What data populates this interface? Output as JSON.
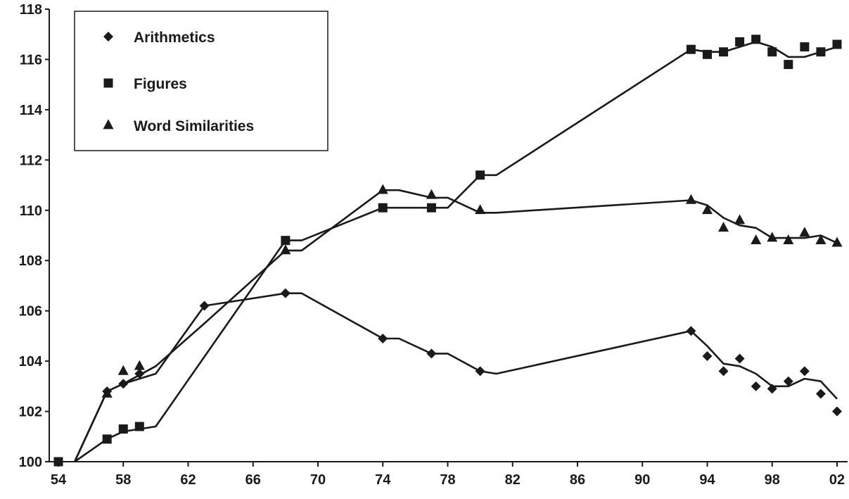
{
  "chart_data": {
    "type": "line",
    "title": "",
    "xlabel": "",
    "ylabel": "",
    "xlim": [
      1954,
      2002
    ],
    "ylim": [
      100,
      118
    ],
    "x_ticks": [
      1954,
      1958,
      1962,
      1966,
      1970,
      1974,
      1978,
      1982,
      1986,
      1990,
      1994,
      1998,
      2002
    ],
    "x_tick_labels": [
      "54",
      "58",
      "62",
      "66",
      "70",
      "74",
      "78",
      "82",
      "86",
      "90",
      "94",
      "98",
      "02"
    ],
    "y_ticks": [
      100,
      102,
      104,
      106,
      108,
      110,
      112,
      114,
      116,
      118
    ],
    "y_tick_labels": [
      "100",
      "102",
      "104",
      "106",
      "108",
      "110",
      "112",
      "114",
      "116",
      "118"
    ],
    "grid": false,
    "legend_placement": "top-left",
    "series": [
      {
        "name": "Arithmetics",
        "marker": "diamond",
        "points": [
          [
            1954,
            100.0
          ],
          [
            1957,
            102.8
          ],
          [
            1958,
            103.1
          ],
          [
            1959,
            103.5
          ],
          [
            1963,
            106.2
          ],
          [
            1968,
            106.7
          ],
          [
            1974,
            104.9
          ],
          [
            1977,
            104.3
          ],
          [
            1980,
            103.6
          ],
          [
            1993,
            105.2
          ],
          [
            1994,
            104.2
          ],
          [
            1995,
            103.6
          ],
          [
            1996,
            104.1
          ],
          [
            1997,
            103.0
          ],
          [
            1998,
            102.9
          ],
          [
            1999,
            103.2
          ],
          [
            2000,
            103.6
          ],
          [
            2001,
            102.7
          ],
          [
            2002,
            102.0
          ]
        ],
        "trend": [
          [
            1955,
            100.0
          ],
          [
            1957,
            102.8
          ],
          [
            1958,
            103.1
          ],
          [
            1960,
            103.5
          ],
          [
            1963,
            106.2
          ],
          [
            1968,
            106.7
          ],
          [
            1969,
            106.7
          ],
          [
            1974,
            104.9
          ],
          [
            1975,
            104.9
          ],
          [
            1977,
            104.3
          ],
          [
            1978,
            104.3
          ],
          [
            1980,
            103.6
          ],
          [
            1981,
            103.5
          ],
          [
            1993,
            105.2
          ],
          [
            1994,
            104.6
          ],
          [
            1995,
            103.9
          ],
          [
            1996,
            103.8
          ],
          [
            1997,
            103.5
          ],
          [
            1998,
            103.0
          ],
          [
            1999,
            103.0
          ],
          [
            2000,
            103.3
          ],
          [
            2001,
            103.2
          ],
          [
            2002,
            102.5
          ]
        ]
      },
      {
        "name": "Figures",
        "marker": "square",
        "points": [
          [
            1954,
            100.0
          ],
          [
            1957,
            100.9
          ],
          [
            1958,
            101.3
          ],
          [
            1959,
            101.4
          ],
          [
            1968,
            108.8
          ],
          [
            1974,
            110.1
          ],
          [
            1977,
            110.1
          ],
          [
            1980,
            111.4
          ],
          [
            1993,
            116.4
          ],
          [
            1994,
            116.2
          ],
          [
            1995,
            116.3
          ],
          [
            1996,
            116.7
          ],
          [
            1997,
            116.8
          ],
          [
            1998,
            116.3
          ],
          [
            1999,
            115.8
          ],
          [
            2000,
            116.5
          ],
          [
            2001,
            116.3
          ],
          [
            2002,
            116.6
          ]
        ],
        "trend": [
          [
            1955,
            100.0
          ],
          [
            1957,
            100.9
          ],
          [
            1958,
            101.2
          ],
          [
            1960,
            101.4
          ],
          [
            1968,
            108.8
          ],
          [
            1969,
            108.8
          ],
          [
            1974,
            110.1
          ],
          [
            1978,
            110.1
          ],
          [
            1980,
            111.4
          ],
          [
            1981,
            111.4
          ],
          [
            1993,
            116.4
          ],
          [
            1994,
            116.3
          ],
          [
            1995,
            116.3
          ],
          [
            1996,
            116.5
          ],
          [
            1997,
            116.7
          ],
          [
            1998,
            116.5
          ],
          [
            1999,
            116.1
          ],
          [
            2000,
            116.1
          ],
          [
            2001,
            116.3
          ],
          [
            2002,
            116.5
          ]
        ]
      },
      {
        "name": "Word Similarities",
        "marker": "triangle",
        "points": [
          [
            1957,
            102.7
          ],
          [
            1958,
            103.6
          ],
          [
            1959,
            103.8
          ],
          [
            1968,
            108.4
          ],
          [
            1974,
            110.8
          ],
          [
            1977,
            110.6
          ],
          [
            1980,
            110.0
          ],
          [
            1993,
            110.4
          ],
          [
            1994,
            110.0
          ],
          [
            1995,
            109.3
          ],
          [
            1996,
            109.6
          ],
          [
            1997,
            108.8
          ],
          [
            1998,
            108.9
          ],
          [
            1999,
            108.8
          ],
          [
            2000,
            109.1
          ],
          [
            2001,
            108.8
          ],
          [
            2002,
            108.7
          ]
        ],
        "trend": [
          [
            1955,
            100.0
          ],
          [
            1957,
            102.8
          ],
          [
            1958,
            103.1
          ],
          [
            1960,
            103.8
          ],
          [
            1963,
            105.5
          ],
          [
            1968,
            108.4
          ],
          [
            1969,
            108.4
          ],
          [
            1974,
            110.8
          ],
          [
            1975,
            110.8
          ],
          [
            1977,
            110.5
          ],
          [
            1978,
            110.5
          ],
          [
            1980,
            109.9
          ],
          [
            1981,
            109.9
          ],
          [
            1993,
            110.4
          ],
          [
            1994,
            110.2
          ],
          [
            1995,
            109.7
          ],
          [
            1996,
            109.4
          ],
          [
            1997,
            109.3
          ],
          [
            1998,
            108.9
          ],
          [
            1999,
            108.9
          ],
          [
            2000,
            108.9
          ],
          [
            2001,
            109.0
          ],
          [
            2002,
            108.7
          ]
        ]
      }
    ]
  }
}
